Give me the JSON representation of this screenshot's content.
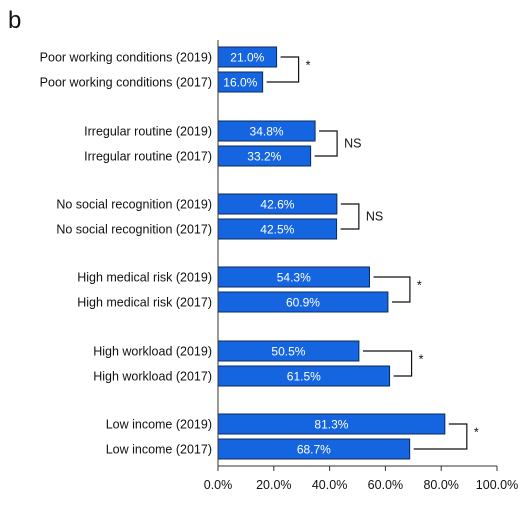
{
  "panel_label": "b",
  "colors": {
    "bar": "#1565e0",
    "bar_stroke": "#0a2a5e",
    "axis": "#333333",
    "text": "#111111"
  },
  "chart_data": {
    "type": "bar",
    "orientation": "horizontal",
    "xlim": [
      0,
      100
    ],
    "ticks": [
      {
        "value": 0,
        "label": "0.0%"
      },
      {
        "value": 20,
        "label": "20.0%"
      },
      {
        "value": 40,
        "label": "40.0%"
      },
      {
        "value": 60,
        "label": "60.0%"
      },
      {
        "value": 80,
        "label": "80.0%"
      },
      {
        "value": 100,
        "label": "100.0%"
      }
    ],
    "groups": [
      {
        "bars": [
          {
            "category": "Poor working conditions (2019)",
            "value": 21.0,
            "label": "21.0%"
          },
          {
            "category": "Poor working conditions (2017)",
            "value": 16.0,
            "label": "16.0%"
          }
        ],
        "significance": "*"
      },
      {
        "bars": [
          {
            "category": "Irregular routine (2019)",
            "value": 34.8,
            "label": "34.8%"
          },
          {
            "category": "Irregular routine (2017)",
            "value": 33.2,
            "label": "33.2%"
          }
        ],
        "significance": "NS"
      },
      {
        "bars": [
          {
            "category": "No social recognition (2019)",
            "value": 42.6,
            "label": "42.6%"
          },
          {
            "category": "No social recognition (2017)",
            "value": 42.5,
            "label": "42.5%"
          }
        ],
        "significance": "NS"
      },
      {
        "bars": [
          {
            "category": "High medical risk (2019)",
            "value": 54.3,
            "label": "54.3%"
          },
          {
            "category": "High medical risk (2017)",
            "value": 60.9,
            "label": "60.9%"
          }
        ],
        "significance": "*"
      },
      {
        "bars": [
          {
            "category": "High workload (2019)",
            "value": 50.5,
            "label": "50.5%"
          },
          {
            "category": "High workload (2017)",
            "value": 61.5,
            "label": "61.5%"
          }
        ],
        "significance": "*"
      },
      {
        "bars": [
          {
            "category": "Low income (2019)",
            "value": 81.3,
            "label": "81.3%"
          },
          {
            "category": "Low income (2017)",
            "value": 68.7,
            "label": "68.7%"
          }
        ],
        "significance": "*"
      }
    ]
  }
}
